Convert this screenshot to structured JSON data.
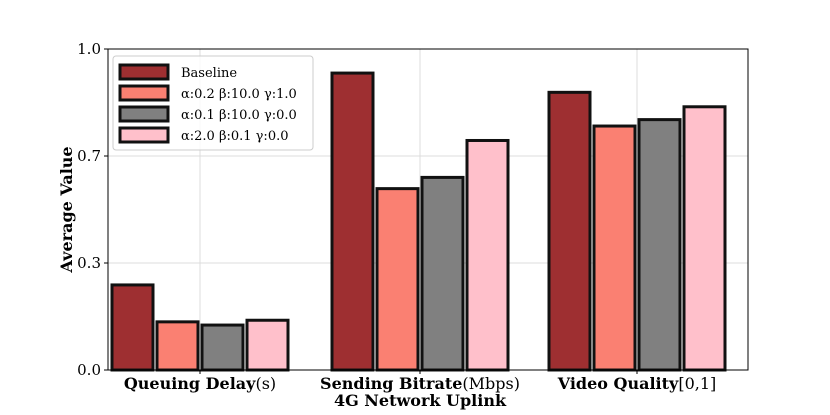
{
  "chart_data": {
    "type": "bar",
    "categories": [
      {
        "name": "Queuing Delay",
        "unit": "(s)"
      },
      {
        "name": "Sending Bitrate",
        "unit": "(Mbps)"
      },
      {
        "name": "Video Quality",
        "unit": "[0,1]"
      }
    ],
    "series": [
      {
        "name": "Baseline",
        "color": "#9e2f31",
        "values": [
          0.265,
          0.925,
          0.865
        ]
      },
      {
        "name": "α:0.2 β:10.0 γ:1.0",
        "color": "#fa8072",
        "values": [
          0.15,
          0.565,
          0.76
        ]
      },
      {
        "name": "α:0.1 β:10.0 γ:0.0",
        "color": "#808080",
        "values": [
          0.14,
          0.6,
          0.78
        ]
      },
      {
        "name": "α:2.0 β:0.1 γ:0.0",
        "color": "#ffc0cb",
        "values": [
          0.155,
          0.715,
          0.82
        ]
      }
    ],
    "xlabel": "4G Network Uplink",
    "ylabel": "Average Value",
    "ylim": [
      0.0,
      1.0
    ],
    "yticks": [
      "0.0",
      "0.3",
      "0.7",
      "1.0"
    ],
    "ytick_values": [
      0.0,
      0.3333,
      0.6667,
      1.0
    ],
    "grid": true,
    "legend_position": "top-left"
  }
}
